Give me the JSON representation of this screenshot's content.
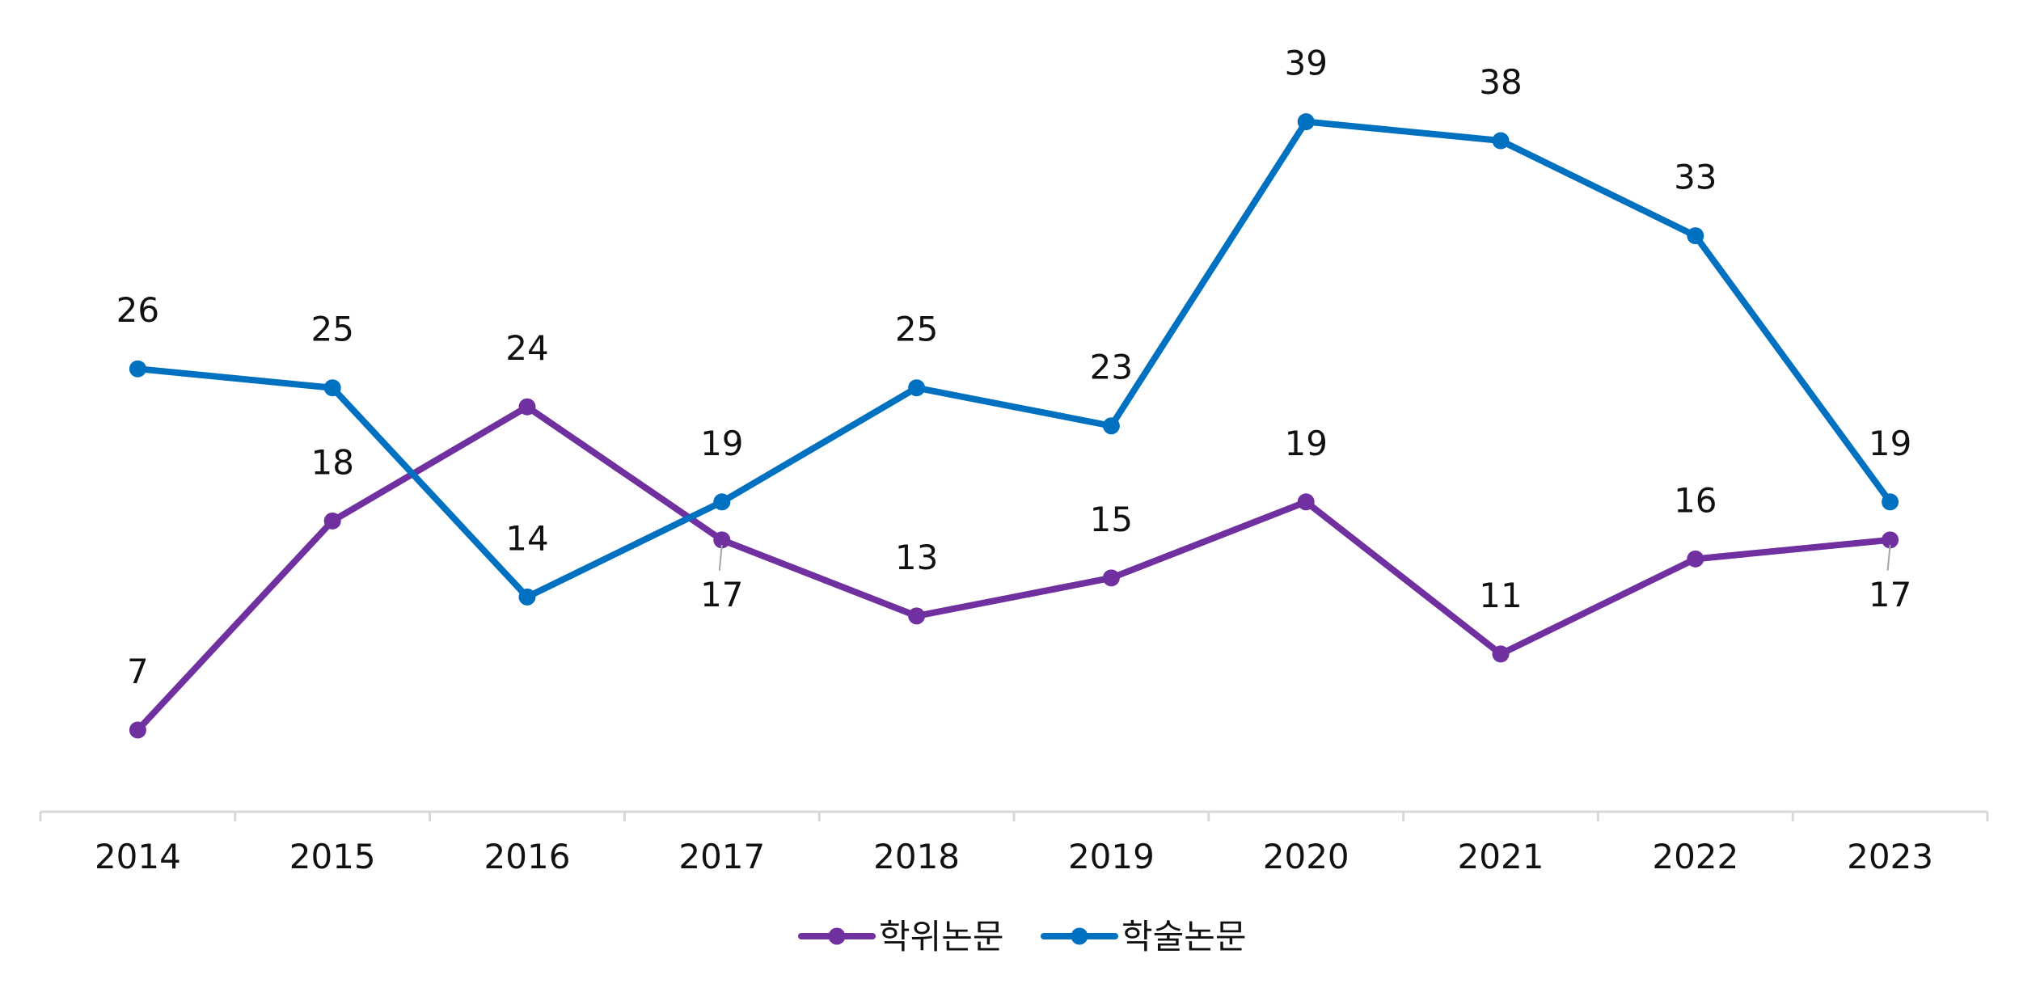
{
  "chart_data": {
    "type": "line",
    "title": "",
    "xlabel": "",
    "ylabel": "",
    "categories": [
      "2014",
      "2015",
      "2016",
      "2017",
      "2018",
      "2019",
      "2020",
      "2021",
      "2022",
      "2023"
    ],
    "series": [
      {
        "name": "학위논문",
        "color": "#7030a0",
        "values": [
          7,
          18,
          24,
          17,
          13,
          15,
          19,
          11,
          16,
          17
        ],
        "label_position": [
          "above",
          "above",
          "above",
          "below-leader",
          "above",
          "above",
          "above",
          "above",
          "above",
          "below-leader"
        ]
      },
      {
        "name": "학술논문",
        "color": "#0070c0",
        "values": [
          26,
          25,
          14,
          19,
          25,
          23,
          39,
          38,
          33,
          19
        ],
        "label_position": [
          "above",
          "above",
          "above",
          "above",
          "above",
          "above",
          "above",
          "above",
          "above",
          "above"
        ]
      }
    ],
    "ylim": [
      5,
      40
    ],
    "grid": false,
    "legend_position": "bottom-center",
    "axis_color": "#d9d9d9",
    "leader_color": "#a6a6a6"
  }
}
